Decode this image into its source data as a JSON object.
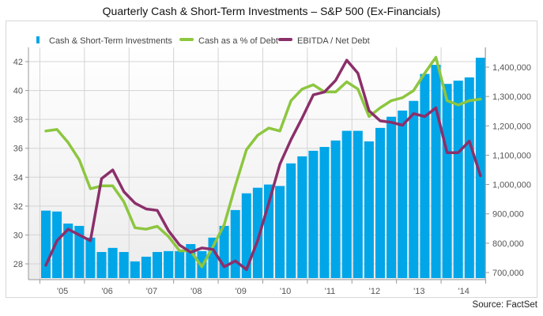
{
  "chart_data": {
    "type": "bar+line",
    "title": "Quarterly Cash & Short-Term Investments – S&P 500 (Ex-Financials)",
    "source": "Source: FactSet",
    "legend_position": "top-left",
    "grid": true,
    "x_tick_labels": [
      "'05",
      "'06",
      "'07",
      "'08",
      "'09",
      "'10",
      "'11",
      "'12",
      "'13",
      "'14"
    ],
    "quarters": [
      "2005Q1",
      "2005Q2",
      "2005Q3",
      "2005Q4",
      "2006Q1",
      "2006Q2",
      "2006Q3",
      "2006Q4",
      "2007Q1",
      "2007Q2",
      "2007Q3",
      "2007Q4",
      "2008Q1",
      "2008Q2",
      "2008Q3",
      "2008Q4",
      "2009Q1",
      "2009Q2",
      "2009Q3",
      "2009Q4",
      "2010Q1",
      "2010Q2",
      "2010Q3",
      "2010Q4",
      "2011Q1",
      "2011Q2",
      "2011Q3",
      "2011Q4",
      "2012Q1",
      "2012Q2",
      "2012Q3",
      "2012Q4",
      "2013Q1",
      "2013Q2",
      "2013Q3",
      "2013Q4",
      "2014Q1",
      "2014Q2",
      "2014Q3",
      "2014Q4"
    ],
    "left_axis": {
      "min": 27,
      "max": 43.5,
      "ticks": [
        28,
        30,
        32,
        34,
        36,
        38,
        40,
        42
      ]
    },
    "right_axis": {
      "min": 680000,
      "max": 1450000,
      "ticks": [
        700000,
        800000,
        900000,
        1000000,
        1100000,
        1200000,
        1300000,
        1400000
      ],
      "tick_labels": [
        "700,000",
        "800,000",
        "900,000",
        "1,000,000",
        "1,100,000",
        "1,200,000",
        "1,300,000",
        "1,400,000"
      ]
    },
    "series": [
      {
        "name": "Cash & Short-Term Investments",
        "type": "bar",
        "axis": "right",
        "color": "#00a6e8",
        "values": [
          911000,
          908000,
          867000,
          859000,
          819000,
          770000,
          784000,
          770000,
          738000,
          754000,
          770000,
          773000,
          773000,
          797000,
          773000,
          819000,
          859000,
          913000,
          970000,
          989000,
          1000000,
          995000,
          1072000,
          1096000,
          1115000,
          1128000,
          1150000,
          1183000,
          1183000,
          1147000,
          1193000,
          1231000,
          1252000,
          1285000,
          1377000,
          1408000,
          1343000,
          1354000,
          1365000,
          1432000
        ]
      },
      {
        "name": "Cash as a % of Debt",
        "type": "line",
        "axis": "left",
        "color": "#8dc63f",
        "values": [
          37.2,
          37.3,
          36.4,
          35.2,
          33.2,
          33.4,
          33.4,
          32.3,
          30.5,
          30.4,
          30.6,
          29.9,
          28.9,
          28.9,
          27.8,
          29.2,
          30.7,
          33.4,
          35.9,
          36.9,
          37.4,
          37.2,
          39.3,
          40.1,
          40.4,
          39.9,
          39.9,
          40.6,
          40.1,
          38.2,
          38.8,
          39.3,
          39.5,
          40.0,
          41.2,
          42.3,
          39.3,
          39.0,
          39.3,
          39.4
        ]
      },
      {
        "name": "EBITDA / Net Debt",
        "type": "line",
        "axis": "left",
        "color": "#8b2f6a",
        "values": [
          27.9,
          29.6,
          30.4,
          30.0,
          29.6,
          33.9,
          34.5,
          33.0,
          32.2,
          31.8,
          31.7,
          30.3,
          29.3,
          28.8,
          29.1,
          29.0,
          27.8,
          28.2,
          27.6,
          29.6,
          32.2,
          34.9,
          36.6,
          38.1,
          39.7,
          39.9,
          40.7,
          42.1,
          41.2,
          38.6,
          37.9,
          37.8,
          37.6,
          38.4,
          38.2,
          38.8,
          35.7,
          35.7,
          36.5,
          34.1
        ]
      }
    ]
  }
}
